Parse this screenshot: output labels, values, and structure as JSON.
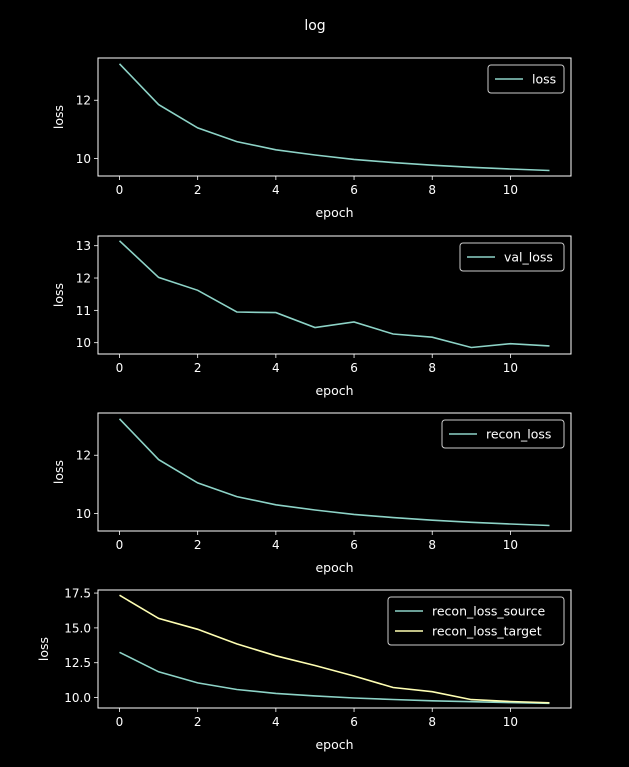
{
  "figure": {
    "title": "log"
  },
  "chart_data": [
    {
      "type": "line",
      "xlabel": "epoch",
      "ylabel": "loss",
      "xlim": [
        -0.55,
        11.55
      ],
      "ylim": [
        9.4,
        13.45
      ],
      "xticks": [
        0,
        2,
        4,
        6,
        8,
        10
      ],
      "yticks": [
        10,
        12
      ],
      "legend_position": "top-right",
      "x": [
        0,
        1,
        2,
        3,
        4,
        5,
        6,
        7,
        8,
        9,
        10,
        11
      ],
      "series": [
        {
          "name": "loss",
          "color": "#8dd3c7",
          "values": [
            13.25,
            11.85,
            11.05,
            10.58,
            10.3,
            10.12,
            9.97,
            9.86,
            9.77,
            9.7,
            9.64,
            9.59
          ]
        }
      ]
    },
    {
      "type": "line",
      "xlabel": "epoch",
      "ylabel": "loss",
      "xlim": [
        -0.55,
        11.55
      ],
      "ylim": [
        9.65,
        13.3
      ],
      "xticks": [
        0,
        2,
        4,
        6,
        8,
        10
      ],
      "yticks": [
        10,
        11,
        12,
        13
      ],
      "legend_position": "top-right",
      "x": [
        0,
        1,
        2,
        3,
        4,
        5,
        6,
        7,
        8,
        9,
        10,
        11
      ],
      "series": [
        {
          "name": "val_loss",
          "color": "#8dd3c7",
          "values": [
            13.15,
            12.02,
            11.62,
            10.95,
            10.93,
            10.47,
            10.64,
            10.27,
            10.17,
            9.85,
            9.97,
            9.9
          ]
        }
      ]
    },
    {
      "type": "line",
      "xlabel": "epoch",
      "ylabel": "loss",
      "xlim": [
        -0.55,
        11.55
      ],
      "ylim": [
        9.4,
        13.45
      ],
      "xticks": [
        0,
        2,
        4,
        6,
        8,
        10
      ],
      "yticks": [
        10,
        12
      ],
      "legend_position": "top-right",
      "x": [
        0,
        1,
        2,
        3,
        4,
        5,
        6,
        7,
        8,
        9,
        10,
        11
      ],
      "series": [
        {
          "name": "recon_loss",
          "color": "#8dd3c7",
          "values": [
            13.25,
            11.85,
            11.05,
            10.58,
            10.3,
            10.12,
            9.97,
            9.86,
            9.77,
            9.7,
            9.64,
            9.59
          ]
        }
      ]
    },
    {
      "type": "line",
      "xlabel": "epoch",
      "ylabel": "loss",
      "xlim": [
        -0.55,
        11.55
      ],
      "ylim": [
        9.25,
        17.72
      ],
      "xticks": [
        0,
        2,
        4,
        6,
        8,
        10
      ],
      "yticks": [
        10.0,
        12.5,
        15.0,
        17.5
      ],
      "ytick_labels": [
        "10.0",
        "12.5",
        "15.0",
        "17.5"
      ],
      "legend_position": "top-right",
      "x": [
        0,
        1,
        2,
        3,
        4,
        5,
        6,
        7,
        8,
        9,
        10,
        11
      ],
      "series": [
        {
          "name": "recon_loss_source",
          "color": "#8dd3c7",
          "values": [
            13.25,
            11.85,
            11.05,
            10.58,
            10.3,
            10.12,
            9.97,
            9.86,
            9.77,
            9.7,
            9.64,
            9.59
          ]
        },
        {
          "name": "recon_loss_target",
          "color": "#ffffb3",
          "values": [
            17.35,
            15.68,
            14.9,
            13.85,
            13.0,
            12.3,
            11.55,
            10.72,
            10.42,
            9.85,
            9.72,
            9.62
          ]
        }
      ]
    }
  ]
}
